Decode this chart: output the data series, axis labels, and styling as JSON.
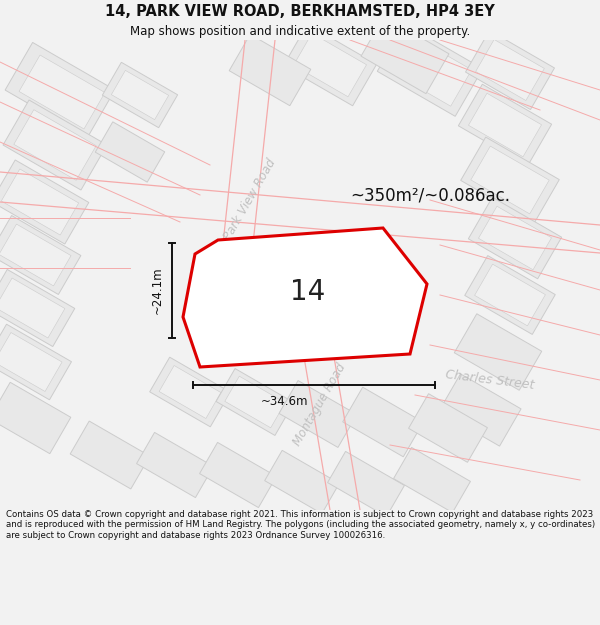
{
  "title": "14, PARK VIEW ROAD, BERKHAMSTED, HP4 3EY",
  "subtitle": "Map shows position and indicative extent of the property.",
  "area_label": "~350m²/~0.086ac.",
  "number_label": "14",
  "dim_horiz": "~34.6m",
  "dim_vert": "~24.1m",
  "footer": "Contains OS data © Crown copyright and database right 2021. This information is subject to Crown copyright and database rights 2023 and is reproduced with the permission of HM Land Registry. The polygons (including the associated geometry, namely x, y co-ordinates) are subject to Crown copyright and database rights 2023 Ordnance Survey 100026316.",
  "bg_color": "#f2f2f2",
  "map_bg": "#ffffff",
  "building_fill": "#e8e8e8",
  "building_edge": "#cccccc",
  "road_line_color": "#f5aaaa",
  "plot_outline_color": "#dd0000",
  "plot_fill": "#ffffff",
  "dim_line_color": "#111111",
  "street_label_color": "#c0c0c0",
  "title_fontsize": 10.5,
  "subtitle_fontsize": 8.5,
  "footer_fontsize": 6.2
}
